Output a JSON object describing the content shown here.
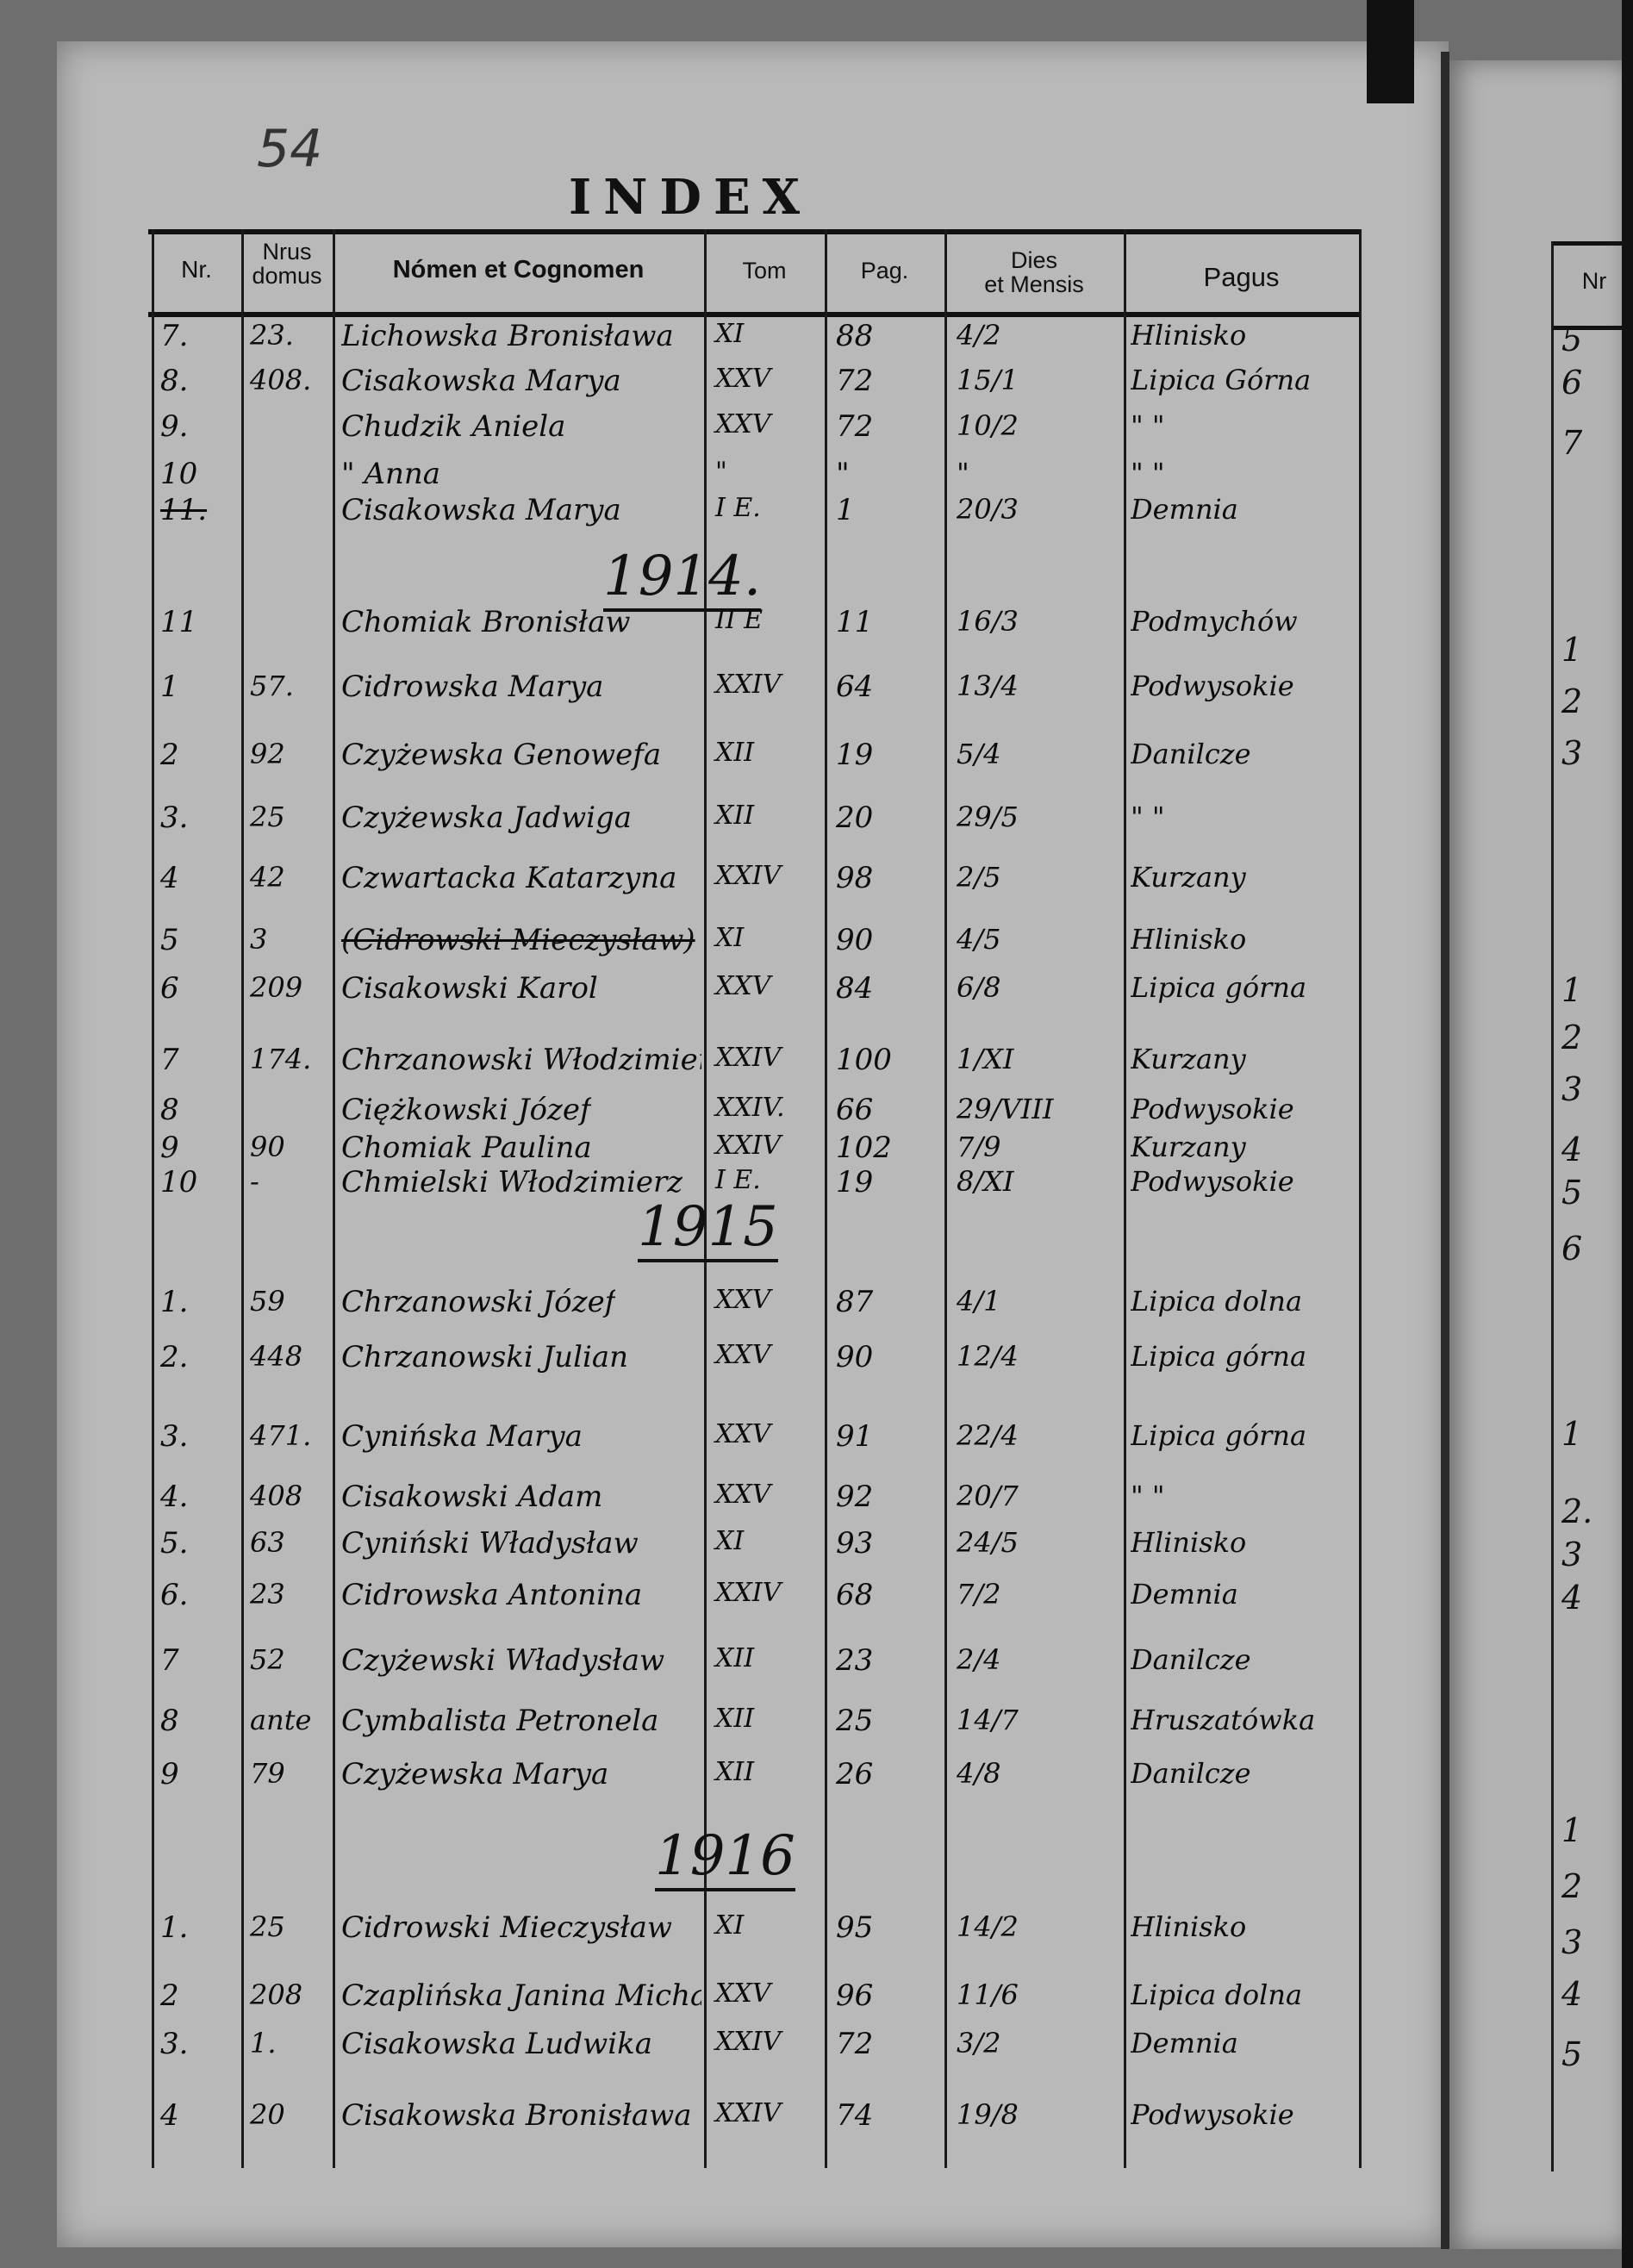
{
  "folio_number": "54",
  "title": "INDEX",
  "headers": {
    "nr": "Nr.",
    "domus_line1": "Nrus",
    "domus_line2": "domus",
    "nomen": "Nómen et Cognomen",
    "tom": "Tom",
    "pag": "Pag.",
    "dies_line1": "Dies",
    "dies_line2": "et Mensis",
    "pagus": "Pagus"
  },
  "rows": [
    {
      "nr": "7.",
      "domus": "23.",
      "name": "Lichowska Bronisława",
      "tom": "XI",
      "pag": "88",
      "dies": "4/2",
      "pagus": "Hlinisko"
    },
    {
      "nr": "8.",
      "domus": "408.",
      "name": "Cisakowska Marya",
      "tom": "XXV",
      "pag": "72",
      "dies": "15/1",
      "pagus": "Lipica Górna"
    },
    {
      "nr": "9.",
      "domus": "",
      "name": "Chudzik Aniela",
      "tom": "XXV",
      "pag": "72",
      "dies": "10/2",
      "pagus": "\"   \""
    },
    {
      "nr": "10",
      "domus": "",
      "name": "\"   Anna",
      "tom": "\"",
      "pag": "\"",
      "dies": "\"",
      "pagus": "\"   \""
    },
    {
      "nr": "11.",
      "domus": "",
      "name": "Cisakowska Marya",
      "tom": "I E.",
      "pag": "1",
      "dies": "20/3",
      "pagus": "Demnia"
    },
    {
      "year": "1914."
    },
    {
      "nr": "11",
      "domus": "",
      "name": "Chomiak Bronisław",
      "tom": "II E",
      "pag": "11",
      "dies": "16/3",
      "pagus": "Podmychów"
    },
    {
      "nr": "1",
      "domus": "57.",
      "name": "Cidrowska Marya",
      "tom": "XXIV",
      "pag": "64",
      "dies": "13/4",
      "pagus": "Podwysokie"
    },
    {
      "nr": "2",
      "domus": "92",
      "name": "Czyżewska Genowefa",
      "tom": "XII",
      "pag": "19",
      "dies": "5/4",
      "pagus": "Danilcze"
    },
    {
      "nr": "3.",
      "domus": "25",
      "name": "Czyżewska Jadwiga",
      "tom": "XII",
      "pag": "20",
      "dies": "29/5",
      "pagus": "\" \""
    },
    {
      "nr": "4",
      "domus": "42",
      "name": "Czwartacka Katarzyna",
      "tom": "XXIV",
      "pag": "98",
      "dies": "2/5",
      "pagus": "Kurzany"
    },
    {
      "nr": "5",
      "domus": "3",
      "name": "(Cidrowski Mieczysław)",
      "tom": "XI",
      "pag": "90",
      "dies": "4/5",
      "pagus": "Hlinisko"
    },
    {
      "nr": "6",
      "domus": "209",
      "name": "Cisakowski Karol",
      "tom": "XXV",
      "pag": "84",
      "dies": "6/8",
      "pagus": "Lipica górna"
    },
    {
      "nr": "7",
      "domus": "174.",
      "name": "Chrzanowski Włodzimierz",
      "tom": "XXIV",
      "pag": "100",
      "dies": "1/XI",
      "pagus": "Kurzany"
    },
    {
      "nr": "8",
      "domus": "",
      "name": "Ciężkowski Józef",
      "tom": "XXIV.",
      "pag": "66",
      "dies": "29/VIII",
      "pagus": "Podwysokie"
    },
    {
      "nr": "9",
      "domus": "90",
      "name": "Chomiak Paulina",
      "tom": "XXIV",
      "pag": "102",
      "dies": "7/9",
      "pagus": "Kurzany"
    },
    {
      "nr": "10",
      "domus": "-",
      "name": "Chmielski Włodzimierz",
      "tom": "I E.",
      "pag": "19",
      "dies": "8/XI",
      "pagus": "Podwysokie"
    },
    {
      "year": "1915"
    },
    {
      "nr": "1.",
      "domus": "59",
      "name": "Chrzanowski Józef",
      "tom": "XXV",
      "pag": "87",
      "dies": "4/1",
      "pagus": "Lipica dolna"
    },
    {
      "nr": "2.",
      "domus": "448",
      "name": "Chrzanowski Julian",
      "tom": "XXV",
      "pag": "90",
      "dies": "12/4",
      "pagus": "Lipica górna"
    },
    {
      "nr": "3.",
      "domus": "471.",
      "name": "Cynińska Marya",
      "tom": "XXV",
      "pag": "91",
      "dies": "22/4",
      "pagus": "Lipica górna"
    },
    {
      "nr": "4.",
      "domus": "408",
      "name": "Cisakowski Adam",
      "tom": "XXV",
      "pag": "92",
      "dies": "20/7",
      "pagus": "\"   \""
    },
    {
      "nr": "5.",
      "domus": "63",
      "name": "Cyniński Władysław",
      "tom": "XI",
      "pag": "93",
      "dies": "24/5",
      "pagus": "Hlinisko"
    },
    {
      "nr": "6.",
      "domus": "23",
      "name": "Cidrowska Antonina",
      "tom": "XXIV",
      "pag": "68",
      "dies": "7/2",
      "pagus": "Demnia"
    },
    {
      "nr": "7",
      "domus": "52",
      "name": "Czyżewski Władysław",
      "tom": "XII",
      "pag": "23",
      "dies": "2/4",
      "pagus": "Danilcze"
    },
    {
      "nr": "8",
      "domus": "ante",
      "name": "Cymbalista Petronela",
      "tom": "XII",
      "pag": "25",
      "dies": "14/7",
      "pagus": "Hruszatówka"
    },
    {
      "nr": "9",
      "domus": "79",
      "name": "Czyżewska Marya",
      "tom": "XII",
      "pag": "26",
      "dies": "4/8",
      "pagus": "Danilcze"
    },
    {
      "year": "1916"
    },
    {
      "nr": "1.",
      "domus": "25",
      "name": "Cidrowski Mieczysław",
      "tom": "XI",
      "pag": "95",
      "dies": "14/2",
      "pagus": "Hlinisko"
    },
    {
      "nr": "2",
      "domus": "208",
      "name": "Czaplińska Janina Michalina",
      "tom": "XXV",
      "pag": "96",
      "dies": "11/6",
      "pagus": "Lipica dolna"
    },
    {
      "nr": "3.",
      "domus": "1.",
      "name": "Cisakowska Ludwika",
      "tom": "XXIV",
      "pag": "72",
      "dies": "3/2",
      "pagus": "Demnia"
    },
    {
      "nr": "4",
      "domus": "20",
      "name": "Cisakowska Bronisława",
      "tom": "XXIV",
      "pag": "74",
      "dies": "19/8",
      "pagus": "Podwysokie"
    }
  ],
  "right_page": {
    "header_nr": "Nr",
    "numbers": [
      "5",
      "6",
      "7",
      "1",
      "2",
      "3",
      "1",
      "2",
      "3",
      "4",
      "5",
      "6",
      "1",
      "2.",
      "3",
      "4",
      "1",
      "2",
      "3",
      "4",
      "5"
    ]
  }
}
